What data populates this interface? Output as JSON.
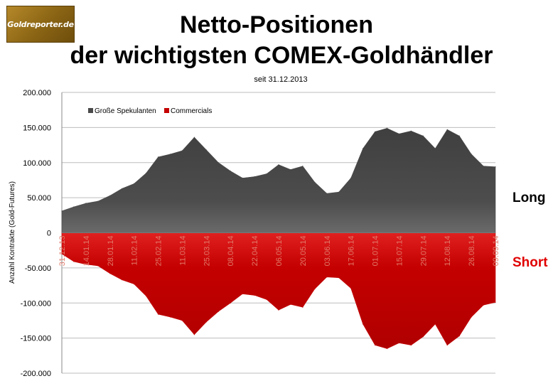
{
  "logo_text": "Goldreporter.de",
  "title_line1": "Netto-Positionen",
  "title_line2": "der wichtigsten COMEX-Goldhändler",
  "subtitle": "seit 31.12.2013",
  "side_labels": {
    "long": "Long",
    "short": "Short"
  },
  "colors": {
    "spekulanten": "#4a4a4a",
    "commercials": "#c40000",
    "short_label": "#e00000",
    "tick_label_on_area": "#e07a6a",
    "logo_background": "#8a6414"
  },
  "chart_data": {
    "type": "area",
    "title": "Netto-Positionen der wichtigsten COMEX-Goldhändler",
    "subtitle": "seit 31.12.2013",
    "xlabel": "",
    "ylabel": "Anzahl Kontrakte (Gold-Futures)",
    "ylim": [
      -200000,
      200000
    ],
    "ytick_values": [
      200000,
      150000,
      100000,
      50000,
      0,
      -50000,
      -100000,
      -150000,
      -200000
    ],
    "ytick_labels": [
      "200.000",
      "150.000",
      "100.000",
      "50.000",
      "0",
      "-50.000",
      "-100.000",
      "-150.000",
      "-200.000"
    ],
    "grid": true,
    "legend_position": "top-left",
    "x_tick_labels": [
      "31.12.13",
      "14.01.14",
      "28.01.14",
      "11.02.14",
      "25.02.14",
      "11.03.14",
      "25.03.14",
      "08.04.14",
      "22.04.14",
      "06.05.14",
      "20.05.14",
      "03.06.14",
      "17.06.14",
      "01.07.14",
      "15.07.14",
      "29.07.14",
      "12.08.14",
      "26.08.14",
      "09.09.14"
    ],
    "x": [
      "31.12.13",
      "07.01.14",
      "14.01.14",
      "21.01.14",
      "28.01.14",
      "04.02.14",
      "11.02.14",
      "18.02.14",
      "25.02.14",
      "04.03.14",
      "11.03.14",
      "18.03.14",
      "25.03.14",
      "01.04.14",
      "08.04.14",
      "15.04.14",
      "22.04.14",
      "29.04.14",
      "06.05.14",
      "13.05.14",
      "20.05.14",
      "27.05.14",
      "03.06.14",
      "10.06.14",
      "17.06.14",
      "24.06.14",
      "01.07.14",
      "08.07.14",
      "15.07.14",
      "22.07.14",
      "29.07.14",
      "05.08.14",
      "12.08.14",
      "19.08.14",
      "26.08.14",
      "02.09.14",
      "09.09.14"
    ],
    "series": [
      {
        "name": "Große Spekulanten",
        "values": [
          31000,
          37000,
          42000,
          45000,
          53000,
          63000,
          70000,
          85000,
          108000,
          112000,
          117000,
          136000,
          118000,
          100000,
          88000,
          78000,
          80000,
          84000,
          97000,
          90000,
          95000,
          72000,
          56000,
          58000,
          78000,
          120000,
          144000,
          149000,
          141000,
          145000,
          138000,
          120000,
          147000,
          138000,
          112000,
          95000,
          94000
        ]
      },
      {
        "name": "Commercials",
        "values": [
          -30000,
          -41000,
          -45000,
          -47000,
          -58000,
          -67000,
          -73000,
          -90000,
          -116000,
          -120000,
          -125000,
          -145000,
          -127000,
          -112000,
          -100000,
          -87000,
          -89000,
          -95000,
          -110000,
          -102000,
          -106000,
          -80000,
          -63000,
          -64000,
          -79000,
          -130000,
          -160000,
          -165000,
          -157000,
          -160000,
          -148000,
          -130000,
          -160000,
          -147000,
          -120000,
          -103000,
          -99000
        ]
      }
    ]
  }
}
